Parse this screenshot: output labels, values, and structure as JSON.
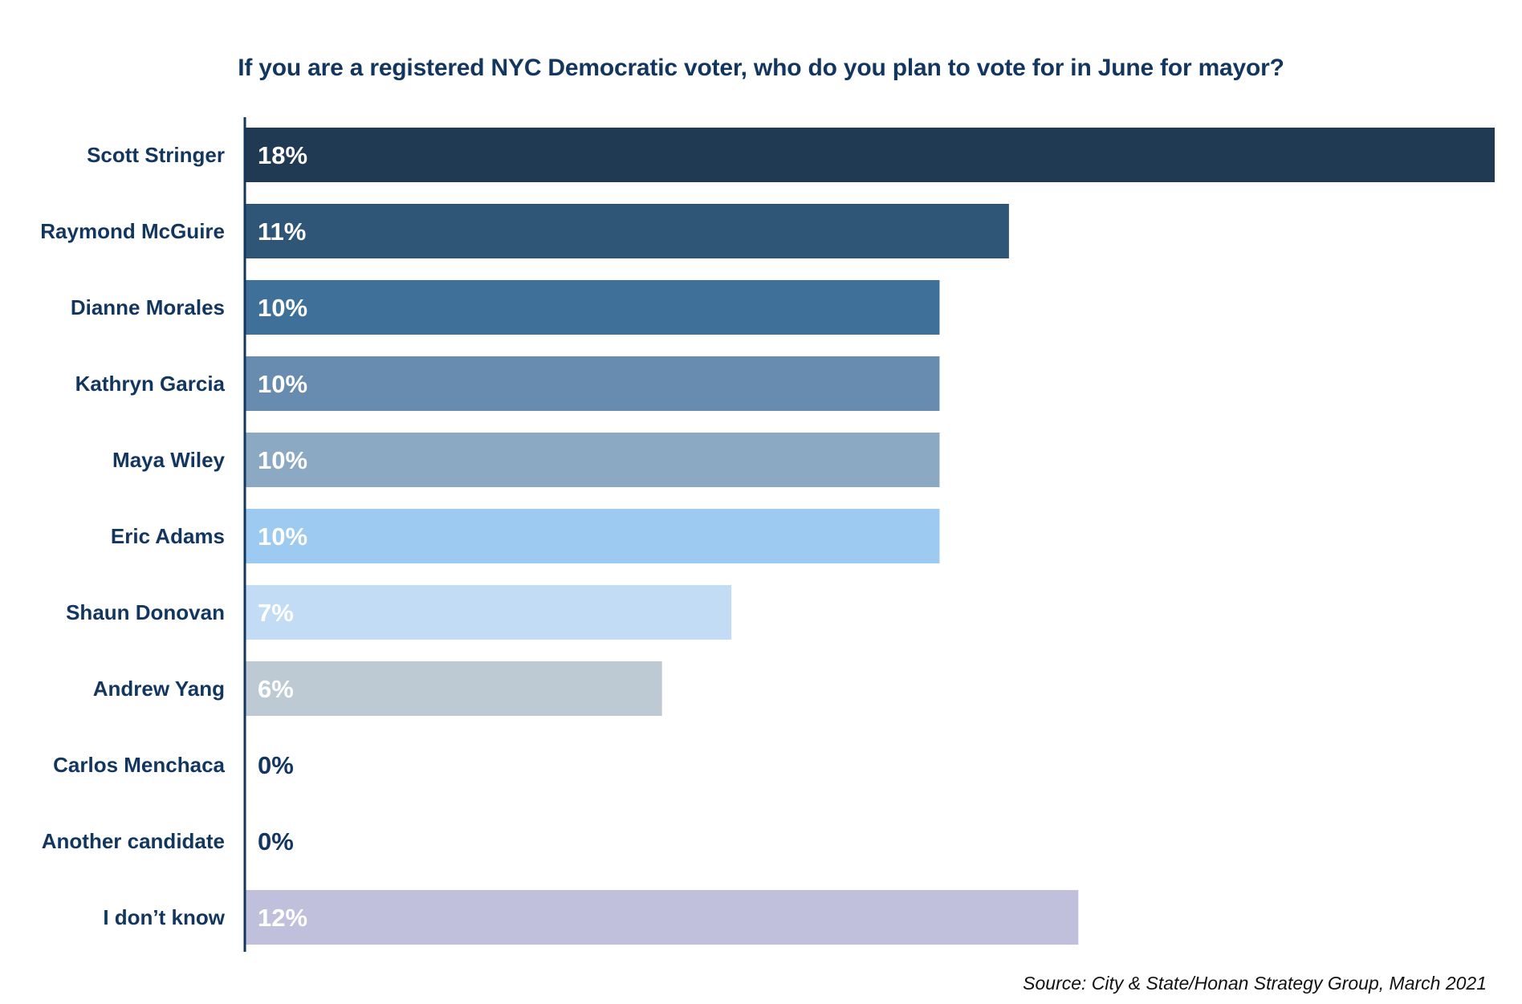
{
  "chart_data": {
    "type": "bar",
    "orientation": "horizontal",
    "title": "If you are a registered NYC Democratic voter, who do you plan to vote for in June for mayor?",
    "source": "Source: City & State/Honan Strategy Group, March 2021",
    "categories": [
      "Scott Stringer",
      "Raymond McGuire",
      "Dianne Morales",
      "Kathryn Garcia",
      "Maya Wiley",
      "Eric Adams",
      "Shaun Donovan",
      "Andrew Yang",
      "Carlos Menchaca",
      "Another candidate",
      "I don’t know"
    ],
    "values": [
      18,
      11,
      10,
      10,
      10,
      10,
      7,
      6,
      0,
      0,
      12
    ],
    "data_labels": [
      "18%",
      "11%",
      "10%",
      "10%",
      "10%",
      "10%",
      "7%",
      "6%",
      "0%",
      "0%",
      "12%"
    ],
    "unit": "%",
    "xlim": [
      0,
      18
    ],
    "grid": false,
    "legend": "none",
    "bar_colors": [
      "#213a53",
      "#2f5677",
      "#3e7099",
      "#688cb0",
      "#8ba9c3",
      "#9ccaf0",
      "#c2dcf6",
      "#bdcad3",
      "#ffffff",
      "#ffffff",
      "#c1c0dc"
    ],
    "label_colors": [
      "#ffffff",
      "#ffffff",
      "#ffffff",
      "#ffffff",
      "#ffffff",
      "#ffffff",
      "#ffffff",
      "#ffffff",
      "#12365f",
      "#12365f",
      "#ffffff"
    ]
  },
  "colors": {
    "title": "#12365f",
    "axis": "#12365f",
    "category_text": "#12365f",
    "source_text": "#111111"
  }
}
